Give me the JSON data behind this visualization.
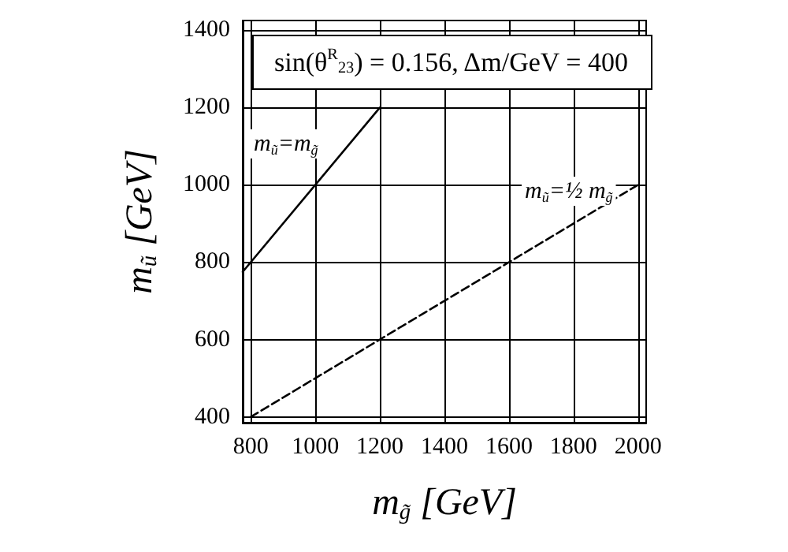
{
  "chart_data": {
    "type": "line",
    "title": "sin(θ$^{R}$$_{23}$) = 0.156, Δm/GeV = 400",
    "xlabel": "m$_{g̃}$ [GeV]",
    "ylabel": "m$_{ũ}$ [GeV]",
    "series": [
      {
        "color": "#000000",
        "line_style": "solid",
        "x": [
          775,
          1200
        ],
        "values": [
          775,
          1200
        ]
      },
      {
        "color": "#000000",
        "line_style": "dashed",
        "x": [
          800,
          2000
        ],
        "values": [
          400,
          1000
        ]
      }
    ],
    "annotations": [
      "m$_{ũ}$=m$_{g̃}$",
      "m$_{ũ}$=½ m$_{g̃}$"
    ],
    "xlim": [
      775,
      2025
    ],
    "ylim": [
      385,
      1425
    ],
    "xticks": [
      800,
      1000,
      1200,
      1400,
      1600,
      1800,
      2000
    ],
    "yticks": [
      400,
      600,
      800,
      1000,
      1200,
      1400
    ],
    "grid": true,
    "marker": "none"
  }
}
